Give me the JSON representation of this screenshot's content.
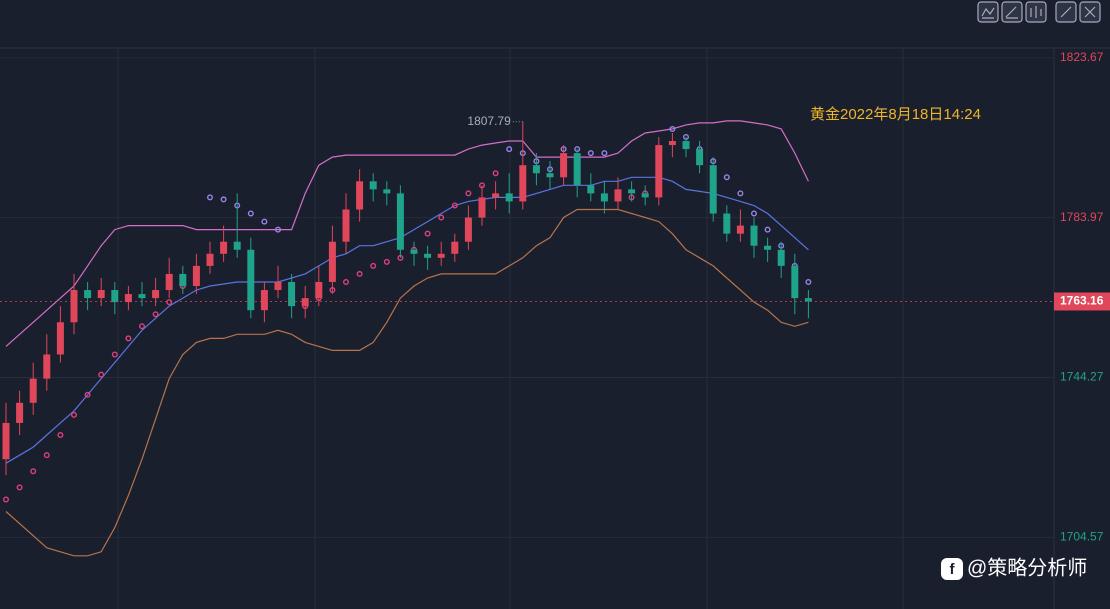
{
  "chart_data": {
    "type": "candlestick",
    "title": "黄金2022年8月18日14:24",
    "ylim": [
      1686.8,
      1826.1
    ],
    "yticks": [
      1823.67,
      1783.97,
      1744.27,
      1704.57
    ],
    "up_color": "#e0475a",
    "down_color": "#1fa38b",
    "open": [
      1724,
      1733,
      1738,
      1744,
      1750,
      1758,
      1766,
      1764,
      1766,
      1763,
      1765,
      1764,
      1766,
      1770,
      1767,
      1772,
      1775,
      1778,
      1776,
      1761,
      1766,
      1768,
      1762,
      1764,
      1768,
      1778,
      1786,
      1793,
      1791,
      1790,
      1776,
      1775,
      1774,
      1775,
      1778,
      1784,
      1789,
      1790,
      1788,
      1797,
      1795,
      1794,
      1800,
      1792,
      1790,
      1788,
      1791,
      1790,
      1789,
      1802,
      1803,
      1801,
      1797,
      1785,
      1780,
      1782,
      1777,
      1776,
      1772,
      1764
    ],
    "high": [
      1738,
      1741,
      1748,
      1755,
      1762,
      1770,
      1768,
      1769,
      1768,
      1767,
      1768,
      1769,
      1774,
      1772,
      1775,
      1778,
      1782,
      1790,
      1779,
      1768,
      1772,
      1770,
      1767,
      1772,
      1782,
      1790,
      1796,
      1795,
      1793,
      1792,
      1778,
      1777,
      1778,
      1780,
      1787,
      1792,
      1793,
      1795,
      1807.79,
      1800,
      1798,
      1802,
      1801,
      1795,
      1793,
      1794,
      1793,
      1792,
      1804,
      1805,
      1804,
      1803,
      1799,
      1787,
      1786,
      1784,
      1779,
      1778,
      1775,
      1766
    ],
    "low": [
      1720,
      1730,
      1735,
      1741,
      1748,
      1755,
      1761,
      1762,
      1760,
      1761,
      1762,
      1762,
      1764,
      1765,
      1765,
      1770,
      1773,
      1774,
      1759,
      1758,
      1764,
      1759,
      1759,
      1762,
      1765,
      1775,
      1783,
      1788,
      1787,
      1774,
      1772,
      1771,
      1772,
      1773,
      1776,
      1782,
      1786,
      1785,
      1786,
      1792,
      1791,
      1792,
      1789,
      1788,
      1785,
      1786,
      1788,
      1787,
      1787,
      1799,
      1799,
      1795,
      1783,
      1778,
      1778,
      1774,
      1773,
      1769,
      1760,
      1759
    ],
    "close": [
      1733,
      1738,
      1744,
      1750,
      1758,
      1766,
      1764,
      1766,
      1763,
      1765,
      1764,
      1766,
      1770,
      1767,
      1772,
      1775,
      1778,
      1776,
      1761,
      1766,
      1768,
      1762,
      1764,
      1768,
      1778,
      1786,
      1793,
      1791,
      1790,
      1776,
      1775,
      1774,
      1775,
      1778,
      1784,
      1789,
      1790,
      1788,
      1797,
      1795,
      1794,
      1800,
      1792,
      1790,
      1788,
      1791,
      1790,
      1789,
      1802,
      1803,
      1801,
      1797,
      1785,
      1780,
      1782,
      1777,
      1776,
      1772,
      1764,
      1763.16
    ],
    "bands": [
      {
        "color": "#d46fc6",
        "values": [
          1752,
          1755,
          1758,
          1761,
          1764,
          1767,
          1772,
          1777,
          1781,
          1782,
          1782,
          1782,
          1782,
          1782,
          1781,
          1781,
          1781,
          1781,
          1781,
          1781,
          1781,
          1781,
          1790,
          1797,
          1799,
          1799.5,
          1799.5,
          1799.5,
          1799.5,
          1799.5,
          1799.5,
          1799.5,
          1799.5,
          1799.5,
          1801,
          1802,
          1802.5,
          1803,
          1803,
          1799,
          1799,
          1799,
          1799,
          1799,
          1799,
          1800,
          1803,
          1805,
          1805.5,
          1806,
          1807,
          1807.5,
          1807.5,
          1808,
          1808,
          1807.5,
          1807,
          1806,
          1800,
          1793
        ]
      },
      {
        "color": "#5b74e0",
        "values": [
          1723,
          1725,
          1727,
          1730,
          1733,
          1736,
          1740,
          1744,
          1748,
          1752,
          1756,
          1759,
          1762,
          1764,
          1766,
          1767,
          1767.5,
          1768,
          1768,
          1768,
          1768,
          1769,
          1770,
          1772,
          1774,
          1775,
          1777,
          1777,
          1778,
          1779,
          1781,
          1783,
          1785,
          1787,
          1788,
          1788.5,
          1789,
          1789,
          1789,
          1790,
          1791,
          1792,
          1792,
          1792,
          1793,
          1793,
          1794,
          1794,
          1794,
          1793,
          1791,
          1790.5,
          1790,
          1789,
          1788,
          1787,
          1785,
          1782,
          1779,
          1776
        ]
      },
      {
        "color": "#b8734a",
        "values": [
          1711,
          1708,
          1705,
          1702,
          1701,
          1700,
          1700,
          1701,
          1707,
          1715,
          1724,
          1734,
          1744,
          1750,
          1753,
          1754,
          1754,
          1755,
          1755,
          1755,
          1756,
          1755,
          1753,
          1752,
          1751,
          1751,
          1751,
          1753,
          1758,
          1764,
          1767,
          1769,
          1770,
          1770,
          1770,
          1770,
          1770,
          1772,
          1774,
          1777,
          1779,
          1784,
          1786,
          1786,
          1786,
          1786,
          1785,
          1784,
          1783,
          1780,
          1776,
          1774,
          1772,
          1769,
          1766,
          1763,
          1761,
          1758,
          1757,
          1758
        ]
      }
    ],
    "sar": [
      {
        "color": "#e0407e",
        "values": [
          1714,
          1717,
          1721,
          1725,
          1730,
          1735,
          1740,
          1745,
          1750,
          1754,
          1757,
          1760,
          1763,
          1767,
          1770,
          null,
          null,
          null,
          null,
          null,
          null,
          null,
          1762,
          1764,
          1766,
          1768,
          1770,
          1772,
          1773,
          1774,
          1776,
          1780,
          1784,
          1787,
          1790,
          1792,
          1795,
          null,
          null,
          null,
          null,
          null,
          null,
          null,
          null,
          1789,
          1789,
          1790,
          1790,
          null,
          null,
          null,
          null,
          null,
          null,
          null,
          null,
          null,
          null,
          null
        ]
      },
      {
        "color": "#9b83e8",
        "values": [
          null,
          null,
          null,
          null,
          null,
          null,
          null,
          null,
          null,
          null,
          null,
          null,
          null,
          null,
          null,
          1789,
          1788.5,
          1787,
          1785,
          1783,
          1781,
          null,
          null,
          null,
          null,
          null,
          null,
          null,
          null,
          null,
          null,
          null,
          null,
          null,
          null,
          null,
          null,
          1801,
          1800,
          1798,
          1796,
          1801,
          1801,
          1800,
          1800,
          null,
          null,
          null,
          null,
          1806,
          1804,
          1801,
          1798,
          1794,
          1790,
          1785,
          1781,
          1777,
          1772,
          1768
        ]
      }
    ],
    "last_price": 1763.16,
    "high_annotation": 1807.79,
    "watermark": "@策略分析师"
  }
}
